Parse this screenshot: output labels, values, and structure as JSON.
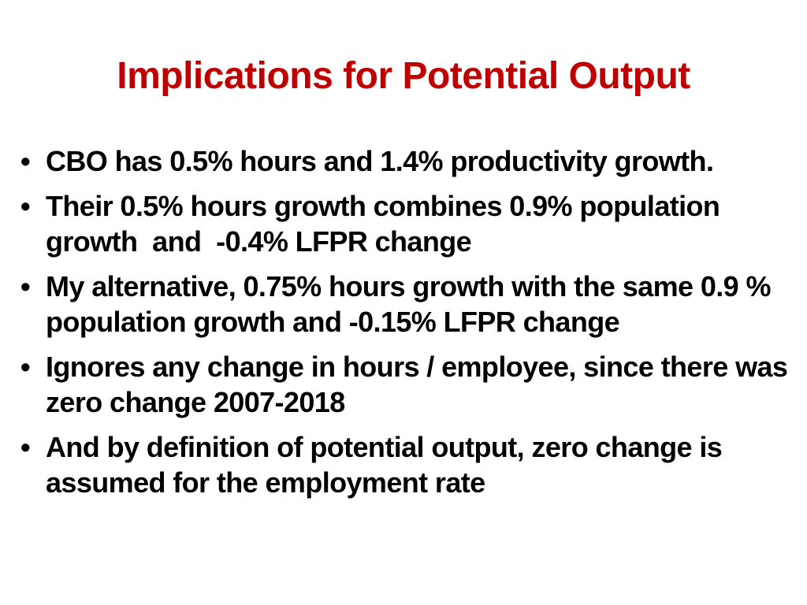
{
  "slide": {
    "title": "Implications for Potential Output",
    "title_color": "#c00000",
    "bullet_glyph": "•",
    "bullets": [
      "CBO has 0.5% hours and 1.4% productivity growth.",
      "Their 0.5% hours growth combines 0.9% population growth  and  -0.4% LFPR change",
      "My alternative, 0.75% hours growth with the same 0.9 % population growth and -0.15% LFPR change",
      "Ignores any change in hours / employee, since there was zero change 2007-2018",
      "And by definition of potential output, zero change is assumed for the employment rate"
    ]
  }
}
